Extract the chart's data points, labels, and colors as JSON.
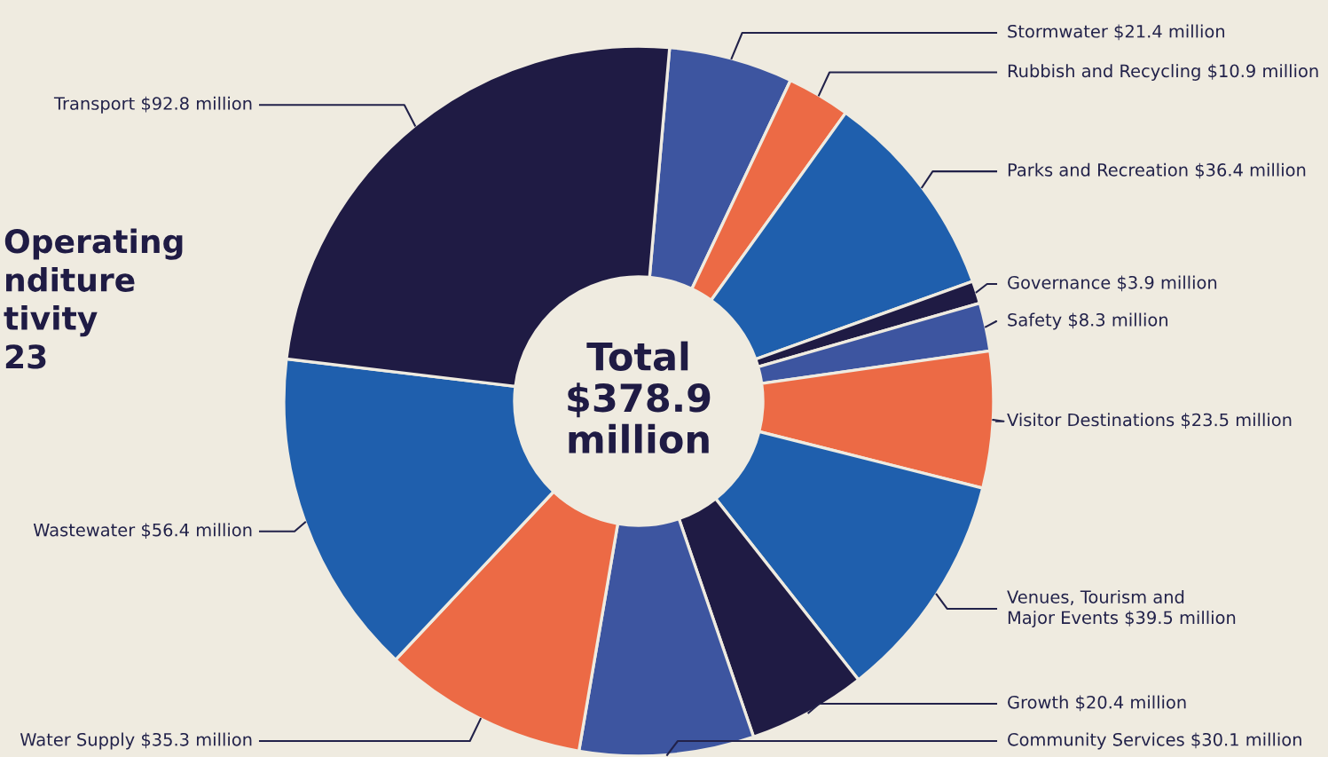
{
  "chart_data": {
    "type": "donut",
    "title": "Operating\nnditure\ntivity\n23",
    "categories": [
      "Stormwater",
      "Rubbish and Recycling",
      "Parks and Recreation",
      "Governance",
      "Safety",
      "Visitor Destinations",
      "Venues, Tourism and\nMajor Events",
      "Growth",
      "Community Services",
      "Water Supply",
      "Wastewater",
      "Transport"
    ],
    "values": [
      21.4,
      10.9,
      36.4,
      3.9,
      8.3,
      23.5,
      39.5,
      20.4,
      30.1,
      35.3,
      56.4,
      92.8
    ],
    "colors": [
      "#3d55a0",
      "#ec6a45",
      "#1f5fad",
      "#1f1b44",
      "#3d55a0",
      "#ec6a45",
      "#1f5fad",
      "#1f1b44",
      "#3d55a0",
      "#ec6a45",
      "#1f5fad",
      "#1f1b44"
    ],
    "value_labels": [
      "$21.4 million",
      "$10.9 million",
      "$36.4 million",
      "$3.9 million",
      "$8.3 million",
      "$23.5 million",
      "$39.5 million",
      "$20.4 million",
      "$30.1 million",
      "$35.3 million",
      "$56.4 million",
      "$92.8 million"
    ],
    "annotations": [
      "Total\n$378.9\nmillion"
    ]
  }
}
